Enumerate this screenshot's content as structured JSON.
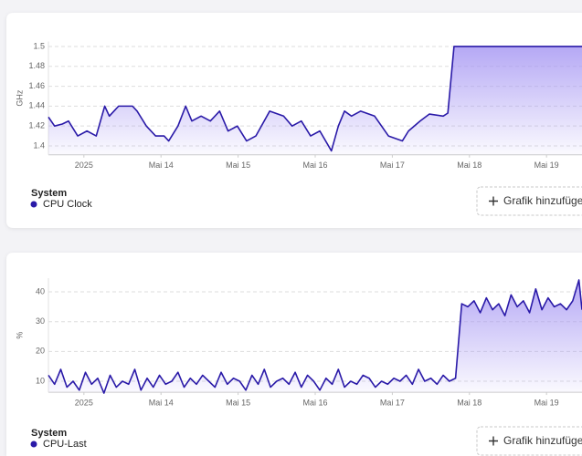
{
  "chart_data": [
    {
      "type": "line",
      "y_label": "GHz",
      "legend_title": "System",
      "button": "Grafik hinzufügen",
      "grid": true,
      "xlim": [
        12.54,
        19.46
      ],
      "ylim": [
        1.391,
        1.505
      ],
      "xticks": [
        {
          "value": 13,
          "label": "2025"
        },
        {
          "value": 14,
          "label": "Mai 14"
        },
        {
          "value": 15,
          "label": "Mai 15"
        },
        {
          "value": 16,
          "label": "Mai 16"
        },
        {
          "value": 17,
          "label": "Mai 17"
        },
        {
          "value": 18,
          "label": "Mai 18"
        },
        {
          "value": 19,
          "label": "Mai 19"
        }
      ],
      "yticks": [
        1.4,
        1.42,
        1.44,
        1.46,
        1.48,
        1.5
      ],
      "x": [
        12.54,
        12.62,
        12.72,
        12.8,
        12.92,
        13.04,
        13.16,
        13.27,
        13.33,
        13.45,
        13.63,
        13.69,
        13.81,
        13.93,
        14.04,
        14.1,
        14.22,
        14.32,
        14.4,
        14.52,
        14.64,
        14.76,
        14.87,
        14.99,
        15.11,
        15.23,
        15.41,
        15.59,
        15.7,
        15.82,
        15.94,
        16.06,
        16.21,
        16.3,
        16.38,
        16.47,
        16.59,
        16.77,
        16.95,
        17.13,
        17.21,
        17.36,
        17.48,
        17.66,
        17.72,
        17.8,
        19.46
      ],
      "series": [
        {
          "name": "CPU Clock",
          "color": "#2a1aa8",
          "values": [
            1.429,
            1.42,
            1.422,
            1.425,
            1.41,
            1.415,
            1.41,
            1.44,
            1.43,
            1.44,
            1.44,
            1.435,
            1.42,
            1.41,
            1.41,
            1.405,
            1.42,
            1.44,
            1.425,
            1.43,
            1.425,
            1.435,
            1.415,
            1.42,
            1.405,
            1.41,
            1.435,
            1.43,
            1.42,
            1.425,
            1.41,
            1.415,
            1.395,
            1.42,
            1.435,
            1.43,
            1.435,
            1.43,
            1.41,
            1.405,
            1.415,
            1.425,
            1.432,
            1.43,
            1.433,
            1.5,
            1.5
          ]
        }
      ]
    },
    {
      "type": "line",
      "y_label": "%",
      "legend_title": "System",
      "button": "Grafik hinzufügen",
      "grid": true,
      "xlim": [
        12.54,
        19.46
      ],
      "ylim": [
        6.3,
        44.6
      ],
      "xticks": [
        {
          "value": 13,
          "label": "2025"
        },
        {
          "value": 14,
          "label": "Mai 14"
        },
        {
          "value": 15,
          "label": "Mai 15"
        },
        {
          "value": 16,
          "label": "Mai 16"
        },
        {
          "value": 17,
          "label": "Mai 17"
        },
        {
          "value": 18,
          "label": "Mai 18"
        },
        {
          "value": 19,
          "label": "Mai 19"
        }
      ],
      "yticks": [
        10,
        20,
        30,
        40
      ],
      "x": [
        12.54,
        12.62,
        12.7,
        12.78,
        12.86,
        12.94,
        13.02,
        13.1,
        13.18,
        13.26,
        13.34,
        13.42,
        13.5,
        13.58,
        13.66,
        13.74,
        13.82,
        13.9,
        13.98,
        14.06,
        14.14,
        14.22,
        14.3,
        14.38,
        14.46,
        14.54,
        14.62,
        14.7,
        14.78,
        14.86,
        14.94,
        15.02,
        15.1,
        15.18,
        15.26,
        15.34,
        15.42,
        15.5,
        15.58,
        15.66,
        15.74,
        15.82,
        15.9,
        15.98,
        16.06,
        16.14,
        16.22,
        16.3,
        16.38,
        16.46,
        16.54,
        16.62,
        16.7,
        16.78,
        16.86,
        16.94,
        17.02,
        17.1,
        17.18,
        17.26,
        17.34,
        17.42,
        17.5,
        17.58,
        17.66,
        17.74,
        17.82,
        17.9,
        17.98,
        18.06,
        18.14,
        18.22,
        18.3,
        18.38,
        18.46,
        18.54,
        18.62,
        18.7,
        18.78,
        18.86,
        18.94,
        19.02,
        19.1,
        19.18,
        19.26,
        19.34,
        19.42,
        19.46
      ],
      "series": [
        {
          "name": "CPU-Last",
          "color": "#2a1aa8",
          "values": [
            12,
            9,
            14,
            8,
            10,
            7,
            13,
            9,
            11,
            6,
            12,
            8,
            10,
            9,
            14,
            7,
            11,
            8,
            12,
            9,
            10,
            13,
            8,
            11,
            9,
            12,
            10,
            8,
            13,
            9,
            11,
            10,
            7,
            12,
            9,
            14,
            8,
            10,
            11,
            9,
            13,
            8,
            12,
            10,
            7,
            11,
            9,
            14,
            8,
            10,
            9,
            12,
            11,
            8,
            10,
            9,
            11,
            10,
            12,
            9,
            14,
            10,
            11,
            9,
            12,
            10,
            11,
            36,
            35,
            37,
            33,
            38,
            34,
            36,
            32,
            39,
            35,
            37,
            33,
            41,
            34,
            38,
            35,
            36,
            34,
            37,
            44,
            34
          ]
        }
      ]
    }
  ]
}
